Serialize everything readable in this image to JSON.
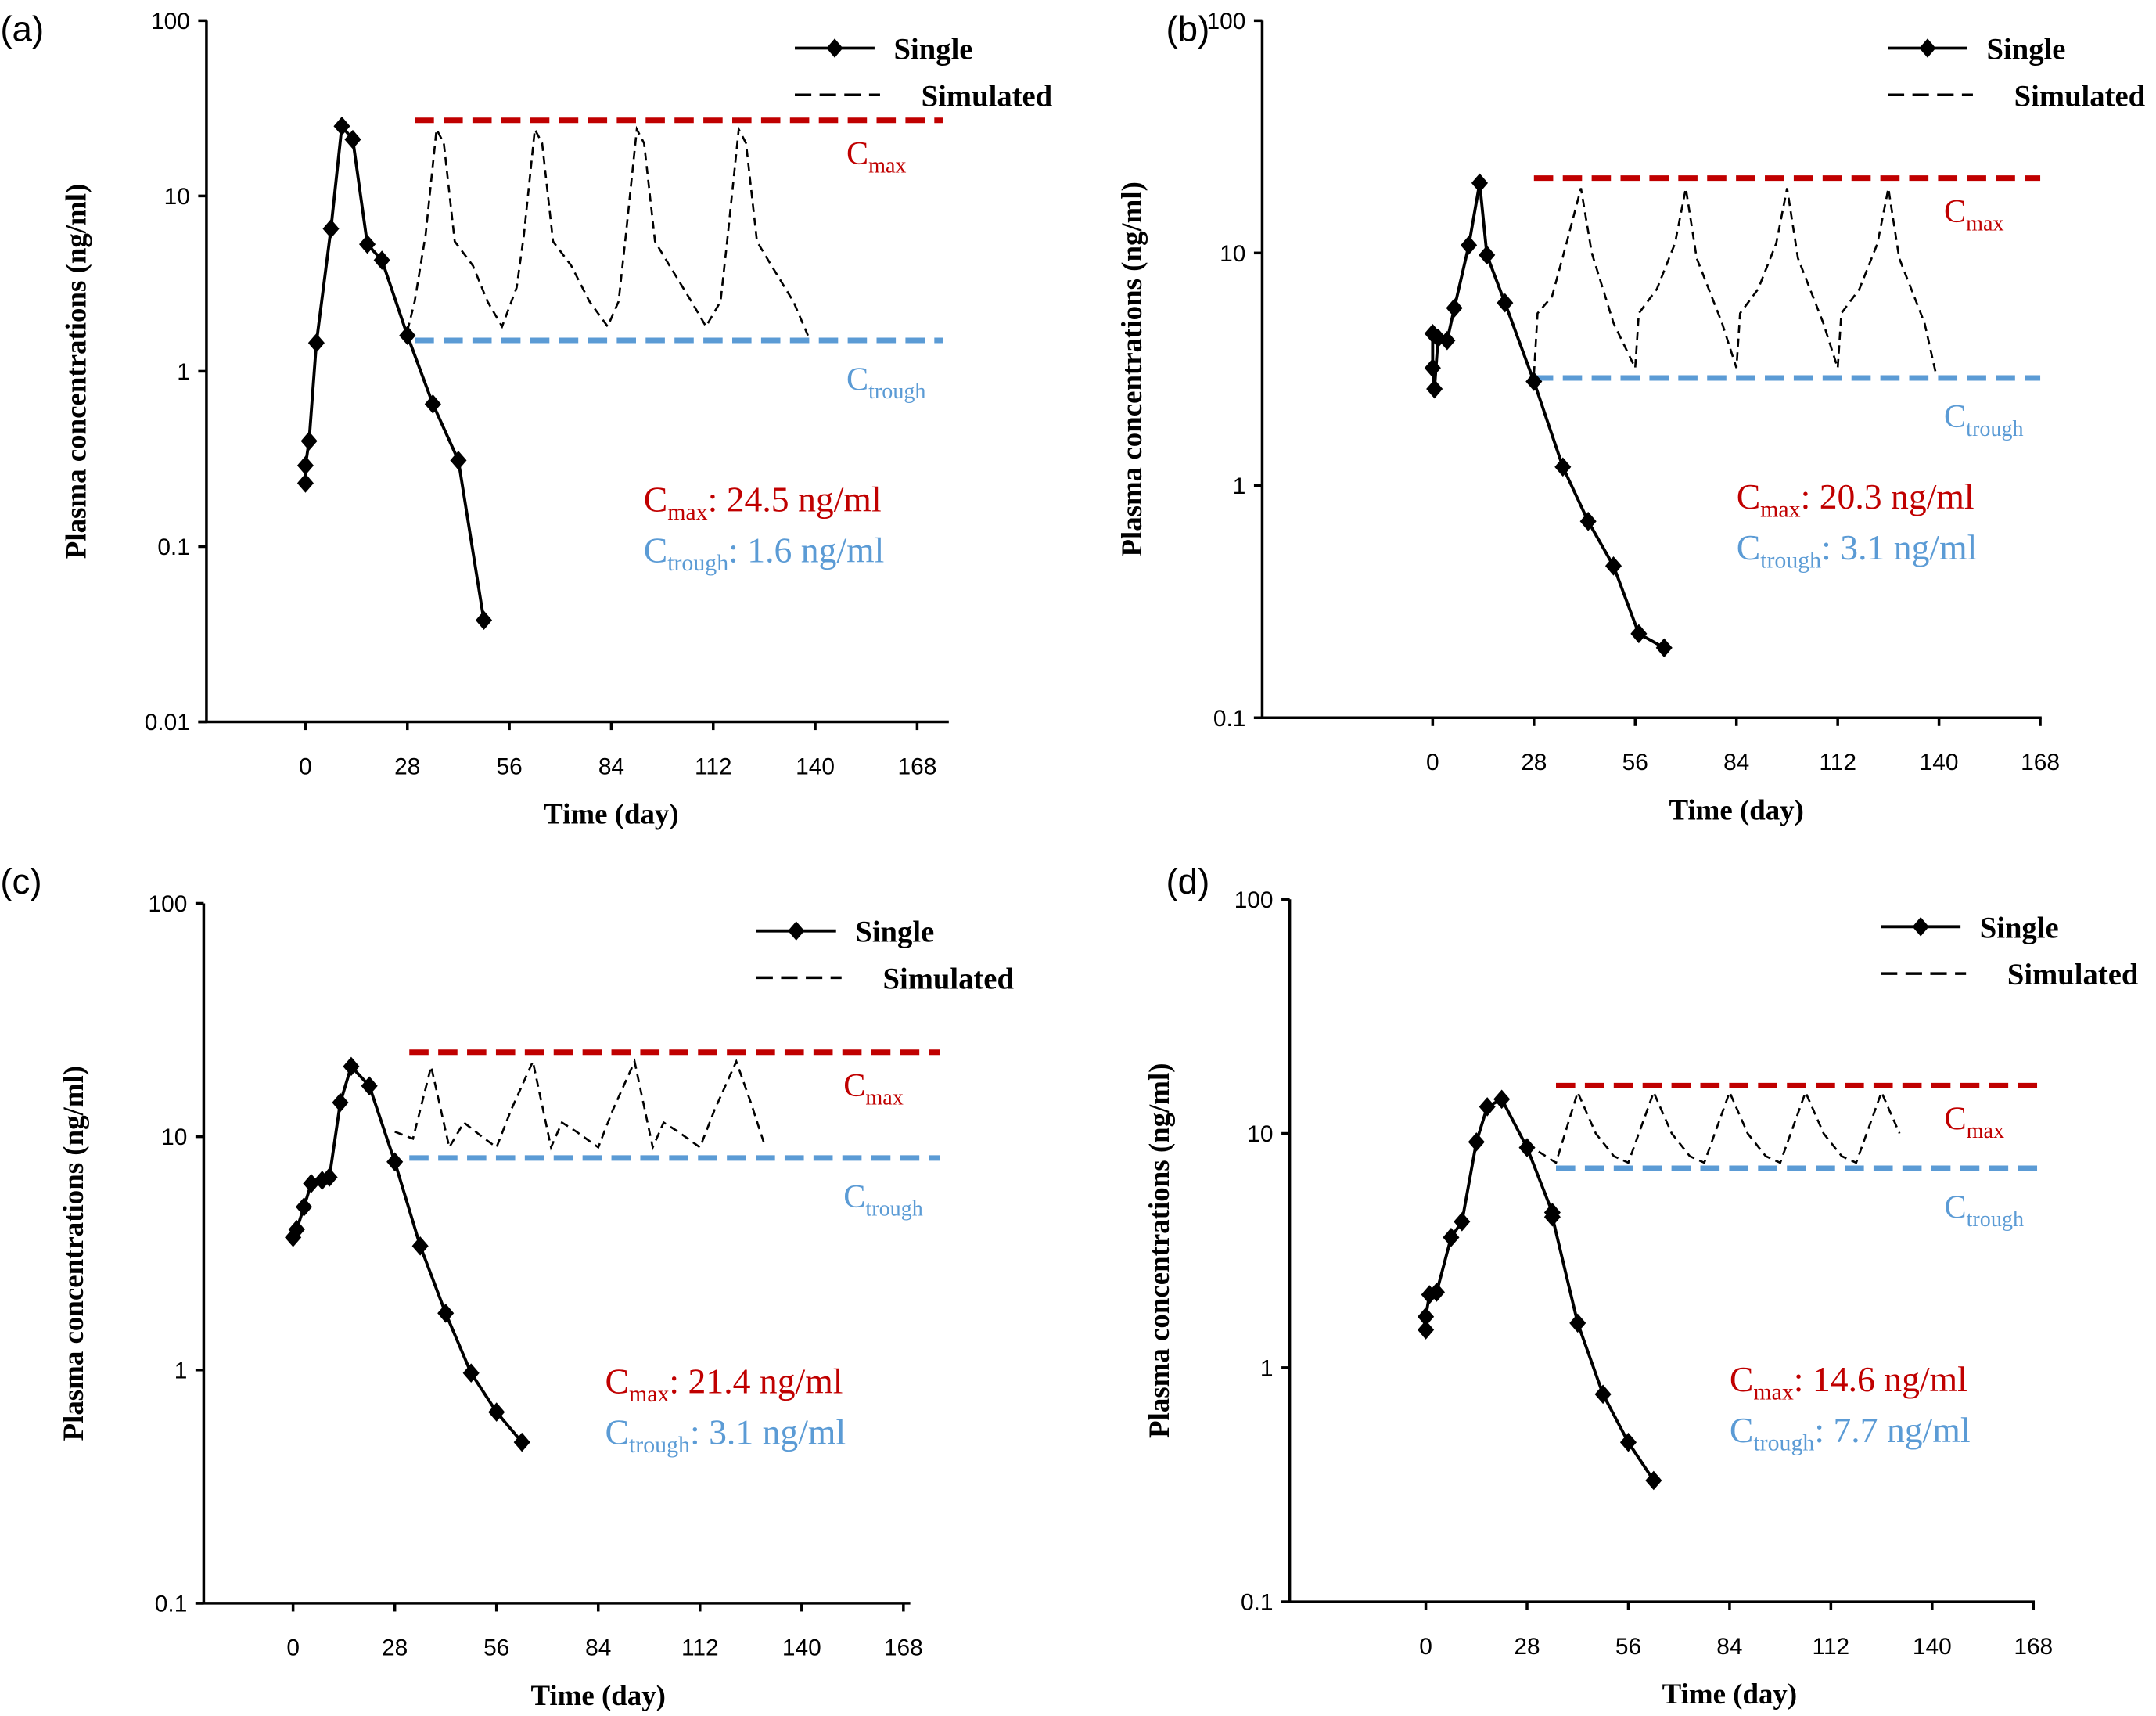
{
  "colors": {
    "cmax": "#c00000",
    "ctrough": "#5b9bd5",
    "single": "#000000",
    "simulated": "#000000"
  },
  "chart_data": [
    {
      "type": "line",
      "panel_label": "(a)",
      "xlabel": "Time (day)",
      "ylabel": "Plasma concentrations (ng/ml)",
      "xticks": [
        "0",
        "28",
        "56",
        "84",
        "112",
        "140",
        "168"
      ],
      "xlim": [
        0,
        168
      ],
      "yticks": [
        "100",
        "10",
        "1",
        "0.1",
        "0.01"
      ],
      "ylim": [
        0.01,
        100
      ],
      "yscale": "log",
      "legend": [
        "Single",
        "Simulated"
      ],
      "legend_position": "top-right",
      "cmax_label": "C",
      "cmax_sub": "max",
      "ctrough_label": "C",
      "ctrough_sub": "trough",
      "annotation_cmax_value": ": 24.5 ng/ml",
      "annotation_ctrough_value": ": 1.6 ng/ml",
      "cmax_line": {
        "y": 27,
        "x": [
          30,
          175
        ]
      },
      "ctrough_line": {
        "y": 1.5,
        "x": [
          30,
          175
        ]
      },
      "series": [
        {
          "name": "Single",
          "x": [
            0,
            0,
            1,
            3,
            7,
            10,
            13,
            17,
            21,
            28,
            35,
            42,
            49
          ],
          "y": [
            0.23,
            0.29,
            0.4,
            1.45,
            6.5,
            25,
            21,
            5.3,
            4.3,
            1.6,
            0.65,
            0.31,
            0.038
          ]
        },
        {
          "name": "Simulated",
          "x": [
            28,
            30,
            33,
            36,
            38,
            41,
            46,
            50,
            54,
            58,
            60,
            63,
            65,
            68,
            73,
            78,
            83,
            86,
            88,
            91,
            93,
            96,
            100,
            106,
            110,
            114,
            116,
            119,
            121,
            124,
            128,
            134,
            138
          ],
          "y": [
            1.7,
            2.5,
            6,
            24,
            20,
            5.5,
            4,
            2.5,
            1.8,
            3,
            6,
            24,
            20,
            5.5,
            4,
            2.5,
            1.8,
            2.5,
            6,
            24,
            20,
            5.5,
            4,
            2.5,
            1.8,
            2.5,
            6,
            24,
            20,
            5.5,
            4,
            2.5,
            1.6
          ]
        }
      ]
    },
    {
      "type": "line",
      "panel_label": "(b)",
      "xlabel": "Time (day)",
      "ylabel": "Plasma concentrations (ng/ml)",
      "xticks": [
        "0",
        "28",
        "56",
        "84",
        "112",
        "140",
        "168"
      ],
      "xlim": [
        0,
        168
      ],
      "yticks": [
        "100",
        "10",
        "1",
        "0.1"
      ],
      "ylim": [
        0.1,
        100
      ],
      "yscale": "log",
      "legend": [
        "Single",
        "Simulated"
      ],
      "legend_position": "top-right",
      "cmax_label": "C",
      "cmax_sub": "max",
      "ctrough_label": "C",
      "ctrough_sub": "trough",
      "annotation_cmax_value": ": 20.3 ng/ml",
      "annotation_ctrough_value": ": 3.1 ng/ml",
      "cmax_line": {
        "y": 21,
        "x": [
          28,
          168
        ]
      },
      "ctrough_line": {
        "y": 2.9,
        "x": [
          28,
          168
        ]
      },
      "series": [
        {
          "name": "Single",
          "x": [
            0,
            0,
            0.5,
            1.5,
            4,
            6,
            10,
            13,
            15,
            20,
            28,
            36,
            43,
            50,
            57,
            64
          ],
          "y": [
            4.5,
            3.2,
            2.6,
            4.3,
            4.2,
            5.8,
            10.8,
            20,
            9.8,
            6.1,
            2.8,
            1.2,
            0.7,
            0.45,
            0.23,
            0.2
          ]
        },
        {
          "name": "Simulated",
          "x": [
            28,
            29,
            33,
            37,
            41,
            44,
            50,
            56,
            57,
            62,
            67,
            70,
            73,
            80,
            84,
            85,
            90,
            95,
            98,
            101,
            108,
            112,
            113,
            118,
            123,
            126,
            129,
            136,
            139
          ],
          "y": [
            3,
            5.5,
            6.5,
            11,
            19,
            10,
            5,
            3.2,
            5.5,
            7,
            11,
            19,
            9.5,
            5,
            3.2,
            5.5,
            7,
            11,
            19,
            9.5,
            5,
            3.2,
            5.5,
            7,
            11,
            19,
            9.5,
            5,
            3.1
          ]
        }
      ]
    },
    {
      "type": "line",
      "panel_label": "(c)",
      "xlabel": "Time (day)",
      "ylabel": "Plasma concentrations (ng/ml)",
      "xticks": [
        "0",
        "28",
        "56",
        "84",
        "112",
        "140",
        "168"
      ],
      "xlim": [
        0,
        168
      ],
      "yticks": [
        "100",
        "10",
        "1",
        "0.1"
      ],
      "ylim": [
        0.1,
        100
      ],
      "yscale": "log",
      "legend": [
        "Single",
        "Simulated"
      ],
      "legend_position": "top-right",
      "cmax_label": "C",
      "cmax_sub": "max",
      "ctrough_label": "C",
      "ctrough_sub": "trough",
      "annotation_cmax_value": ": 21.4 ng/ml",
      "annotation_ctrough_value": ": 3.1 ng/ml",
      "cmax_line": {
        "y": 23,
        "x": [
          32,
          178
        ]
      },
      "ctrough_line": {
        "y": 8.1,
        "x": [
          32,
          178
        ]
      },
      "series": [
        {
          "name": "Single",
          "x": [
            0,
            1,
            3,
            5,
            8,
            10,
            13,
            16,
            21,
            28,
            35,
            42,
            49,
            56,
            63
          ],
          "y": [
            3.7,
            4,
            5,
            6.3,
            6.5,
            6.7,
            14,
            20,
            16.5,
            7.8,
            3.4,
            1.75,
            0.97,
            0.66,
            0.49
          ]
        },
        {
          "name": "Simulated",
          "x": [
            28,
            33,
            38,
            43,
            47,
            52,
            56,
            60,
            66,
            71,
            74,
            78,
            84,
            88,
            94,
            99,
            102,
            106,
            112,
            116,
            122,
            126,
            130
          ],
          "y": [
            10.5,
            9.8,
            20,
            9,
            11.5,
            10,
            9,
            13,
            21,
            9,
            11.5,
            10.5,
            9,
            13,
            21,
            9,
            11.5,
            10.5,
            9,
            13,
            21,
            14,
            9
          ]
        }
      ]
    },
    {
      "type": "line",
      "panel_label": "(d)",
      "xlabel": "Time (day)",
      "ylabel": "Plasma concentrations (ng/ml)",
      "xticks": [
        "0",
        "28",
        "56",
        "84",
        "112",
        "140",
        "168"
      ],
      "xlim": [
        0,
        168
      ],
      "yticks": [
        "100",
        "10",
        "1",
        "0.1"
      ],
      "ylim": [
        0.1,
        100
      ],
      "yscale": "log",
      "legend": [
        "Single",
        "Simulated"
      ],
      "legend_position": "top-right",
      "cmax_label": "C",
      "cmax_sub": "max",
      "ctrough_label": "C",
      "ctrough_sub": "trough",
      "annotation_cmax_value": ": 14.6 ng/ml",
      "annotation_ctrough_value": ": 7.7 ng/ml",
      "cmax_line": {
        "y": 16,
        "x": [
          36,
          170
        ]
      },
      "ctrough_line": {
        "y": 7.1,
        "x": [
          36,
          170
        ]
      },
      "series": [
        {
          "name": "Single",
          "x": [
            0,
            0,
            1,
            3,
            7,
            10,
            14,
            17,
            21,
            28,
            35,
            35,
            42,
            49,
            56,
            63
          ],
          "y": [
            1.45,
            1.65,
            2.05,
            2.1,
            3.6,
            4.2,
            9.2,
            13,
            14,
            8.7,
            4.6,
            4.4,
            1.55,
            0.77,
            0.48,
            0.33
          ]
        },
        {
          "name": "Simulated",
          "x": [
            28,
            36,
            42,
            47,
            52,
            56,
            63,
            68,
            73,
            77,
            84,
            89,
            94,
            98,
            105,
            110,
            115,
            119,
            126,
            131
          ],
          "y": [
            9,
            7.5,
            15,
            10,
            8,
            7.5,
            15,
            10,
            8,
            7.5,
            15,
            10,
            8,
            7.5,
            15,
            10,
            8,
            7.5,
            15,
            10
          ]
        }
      ]
    }
  ]
}
